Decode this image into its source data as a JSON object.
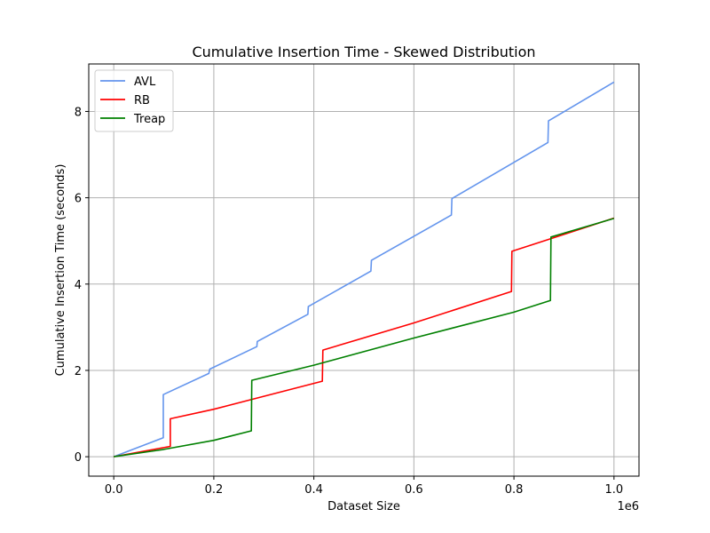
{
  "chart_data": {
    "type": "line",
    "title": "Cumulative Insertion Time - Skewed Distribution",
    "xlabel": "Dataset Size",
    "ylabel": "Cumulative Insertion Time (seconds)",
    "x_offset_label": "1e6",
    "xlim": [
      -0.05,
      1.05
    ],
    "ylim": [
      -0.45,
      9.1
    ],
    "x_ticks": [
      0.0,
      0.2,
      0.4,
      0.6,
      0.8,
      1.0
    ],
    "x_tick_labels": [
      "0.0",
      "0.2",
      "0.4",
      "0.6",
      "0.8",
      "1.0"
    ],
    "y_ticks": [
      0,
      2,
      4,
      6,
      8
    ],
    "y_tick_labels": [
      "0",
      "2",
      "4",
      "6",
      "8"
    ],
    "grid": true,
    "legend": "top-left",
    "series": [
      {
        "name": "AVL",
        "color": "#6495ed",
        "points": [
          [
            0,
            0
          ],
          [
            0.099,
            0.44
          ],
          [
            0.099,
            1.44
          ],
          [
            0.19,
            1.93
          ],
          [
            0.192,
            2.03
          ],
          [
            0.286,
            2.55
          ],
          [
            0.287,
            2.67
          ],
          [
            0.388,
            3.3
          ],
          [
            0.389,
            3.48
          ],
          [
            0.514,
            4.3
          ],
          [
            0.515,
            4.55
          ],
          [
            0.675,
            5.6
          ],
          [
            0.676,
            5.98
          ],
          [
            0.868,
            7.28
          ],
          [
            0.869,
            7.78
          ],
          [
            1.0,
            8.68
          ]
        ]
      },
      {
        "name": "RB",
        "color": "#ff0000",
        "points": [
          [
            0,
            0
          ],
          [
            0.113,
            0.24
          ],
          [
            0.113,
            0.88
          ],
          [
            0.2,
            1.1
          ],
          [
            0.3,
            1.4
          ],
          [
            0.417,
            1.75
          ],
          [
            0.418,
            2.47
          ],
          [
            0.6,
            3.1
          ],
          [
            0.795,
            3.83
          ],
          [
            0.796,
            4.76
          ],
          [
            0.9,
            5.15
          ],
          [
            1.0,
            5.53
          ]
        ]
      },
      {
        "name": "Treap",
        "color": "#008000",
        "points": [
          [
            0,
            0
          ],
          [
            0.1,
            0.17
          ],
          [
            0.2,
            0.38
          ],
          [
            0.275,
            0.6
          ],
          [
            0.276,
            1.77
          ],
          [
            0.4,
            2.12
          ],
          [
            0.6,
            2.75
          ],
          [
            0.8,
            3.35
          ],
          [
            0.873,
            3.62
          ],
          [
            0.874,
            5.09
          ],
          [
            1.0,
            5.52
          ]
        ]
      }
    ]
  }
}
